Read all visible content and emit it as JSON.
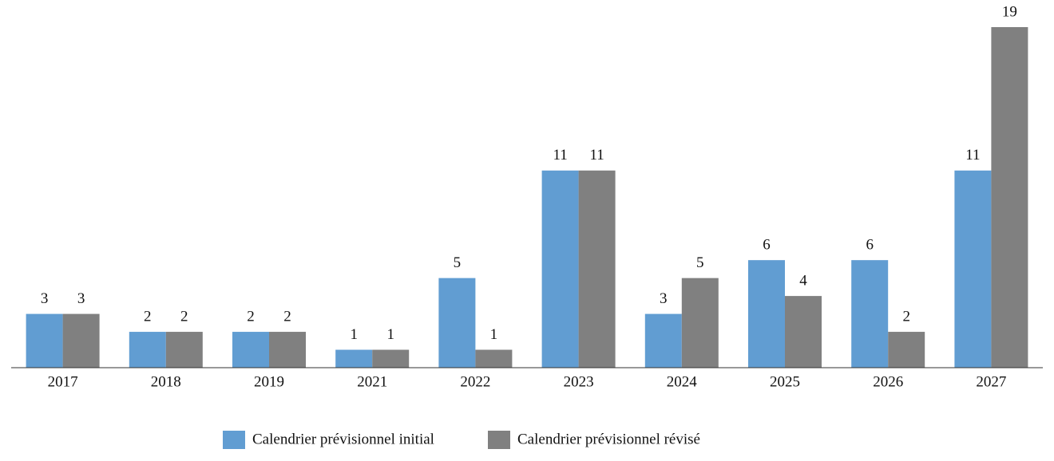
{
  "chart_data": {
    "type": "bar",
    "categories": [
      "2017",
      "2018",
      "2019",
      "2021",
      "2022",
      "2023",
      "2024",
      "2025",
      "2026",
      "2027"
    ],
    "series": [
      {
        "name": "Calendrier prévisionnel initial",
        "color": "#619dd2",
        "values": [
          3,
          2,
          2,
          1,
          5,
          11,
          3,
          6,
          6,
          11
        ]
      },
      {
        "name": "Calendrier prévisionnel révisé",
        "color": "#808080",
        "values": [
          3,
          2,
          2,
          1,
          1,
          11,
          5,
          4,
          2,
          19
        ]
      }
    ]
  }
}
